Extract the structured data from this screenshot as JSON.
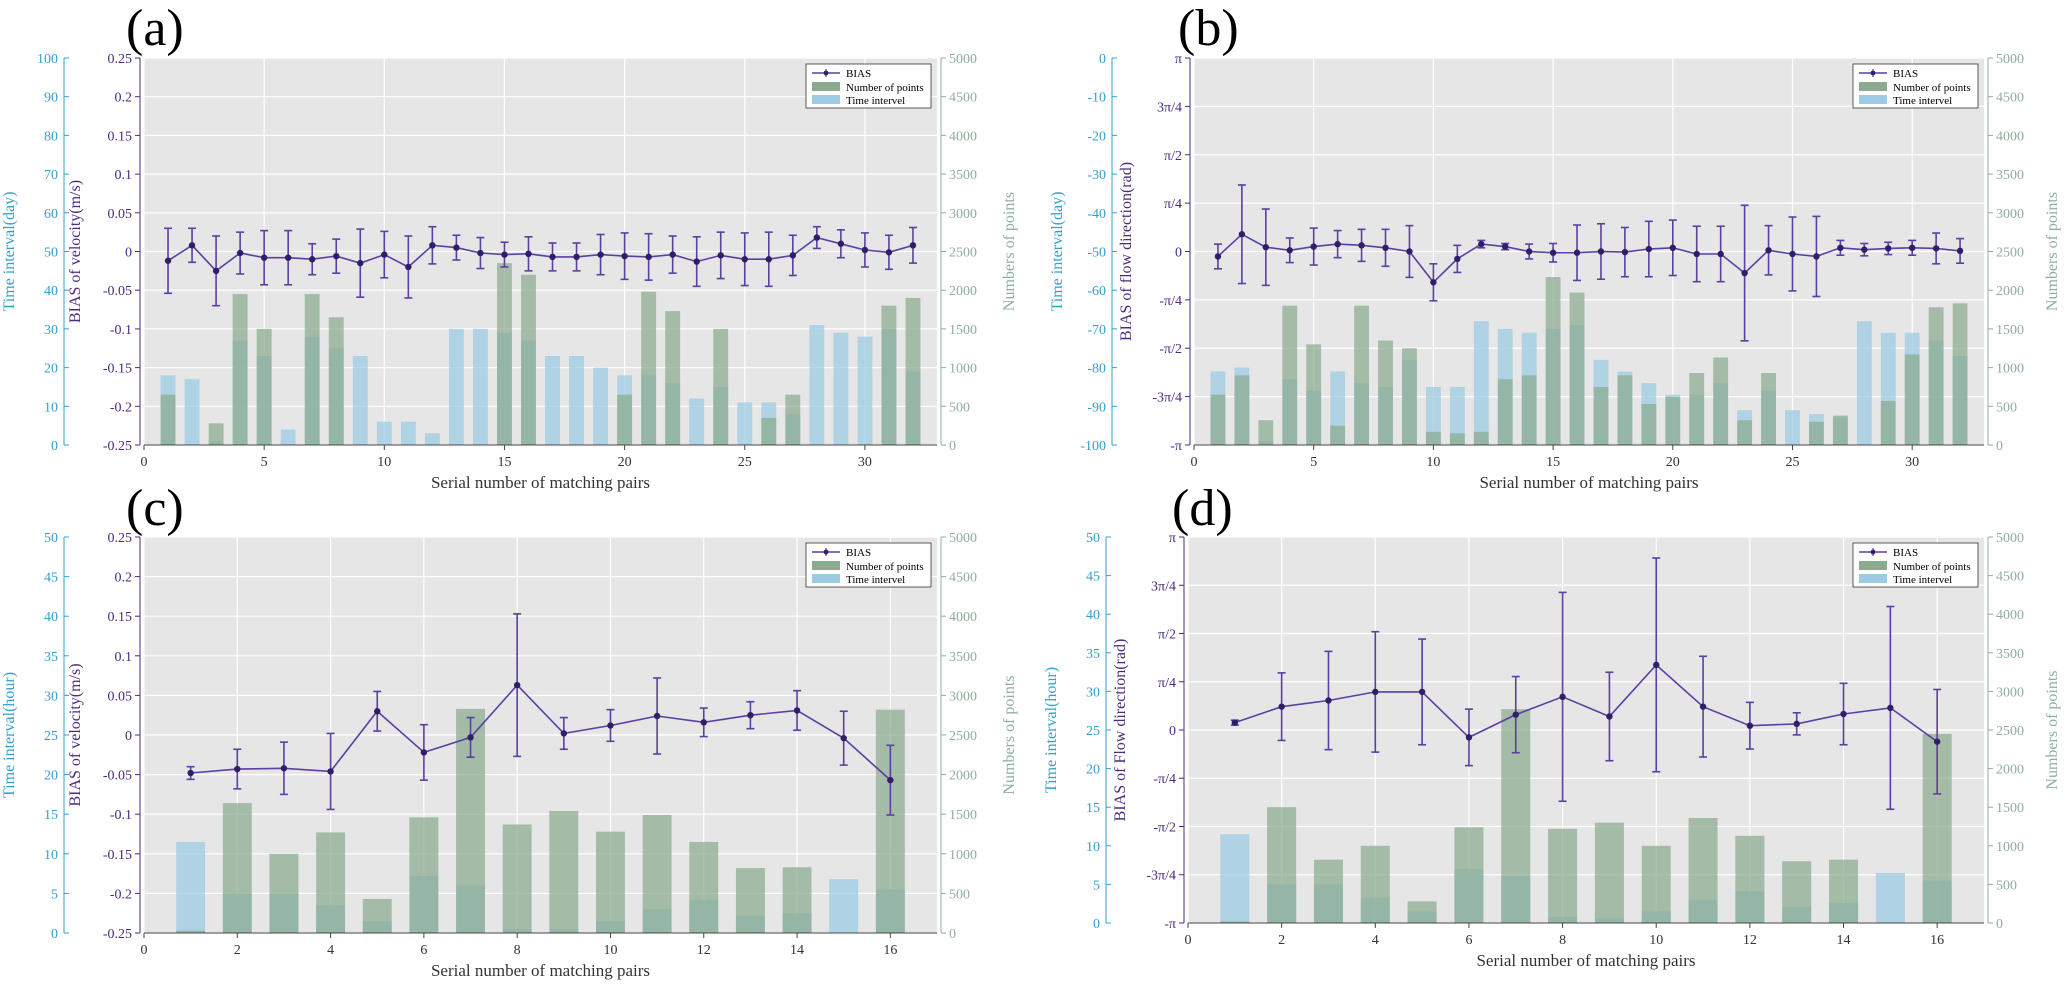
{
  "panels": [
    {
      "id": "a",
      "label": "(a)",
      "xlabel": "Serial number of matching pairs",
      "y_left_label": "BIAS of velocity(m/s)",
      "y_left2_label": "Time interval(day)",
      "y_right_label": "Numbers of points",
      "xlim": [
        0,
        33
      ],
      "x_ticks": [
        "0",
        "5",
        "10",
        "15",
        "20",
        "25",
        "30"
      ],
      "y_left_ticks": [
        "0.25",
        "0.2",
        "0.15",
        "0.1",
        "0.05",
        "0",
        "-0.05",
        "-0.1",
        "-0.15",
        "-0.2",
        "-0.25"
      ],
      "y_left2_ticks": [
        "100",
        "90",
        "80",
        "70",
        "60",
        "50",
        "40",
        "30",
        "20",
        "10",
        "0"
      ],
      "y_right_ticks": [
        "5000",
        "4500",
        "4000",
        "3500",
        "3000",
        "2500",
        "2000",
        "1500",
        "1000",
        "500",
        "0"
      ],
      "legend": [
        "BIAS",
        "Number of points",
        "Time intervel"
      ]
    },
    {
      "id": "b",
      "label": "(b)",
      "xlabel": "Serial number of matching pairs",
      "y_left_label": "BIAS of flow direction(rad)",
      "y_left2_label": "Time interval(day)",
      "y_right_label": "Numbers of points",
      "xlim": [
        0,
        33
      ],
      "x_ticks": [
        "0",
        "5",
        "10",
        "15",
        "20",
        "25",
        "30"
      ],
      "y_left_ticks": [
        "π",
        "3π/4",
        "π/2",
        "π/4",
        "0",
        "-π/4",
        "-π/2",
        "-3π/4",
        "-π"
      ],
      "y_left2_ticks": [
        "0",
        "-10",
        "-20",
        "-30",
        "-40",
        "-50",
        "-60",
        "-70",
        "-80",
        "-90",
        "-100"
      ],
      "y_right_ticks": [
        "5000",
        "4500",
        "4000",
        "3500",
        "3000",
        "2500",
        "2000",
        "1500",
        "1000",
        "500",
        "0"
      ],
      "legend": [
        "BIAS",
        "Number of points",
        "Time intervel"
      ]
    },
    {
      "id": "c",
      "label": "(c)",
      "xlabel": "Serial number of matching pairs",
      "y_left_label": "BIAS of velocity(m/s)",
      "y_left2_label": "Time interval(hour)",
      "y_right_label": "Numbers of points",
      "xlim": [
        0,
        17
      ],
      "x_ticks": [
        "0",
        "2",
        "4",
        "6",
        "8",
        "10",
        "12",
        "14",
        "16"
      ],
      "y_left_ticks": [
        "0.25",
        "0.2",
        "0.15",
        "0.1",
        "0.05",
        "0",
        "-0.05",
        "-0.1",
        "-0.15",
        "-0.2",
        "-0.25"
      ],
      "y_left2_ticks": [
        "50",
        "45",
        "40",
        "35",
        "30",
        "25",
        "20",
        "15",
        "10",
        "5",
        "0"
      ],
      "y_right_ticks": [
        "5000",
        "4500",
        "4000",
        "3500",
        "3000",
        "2500",
        "2000",
        "1500",
        "1000",
        "500",
        "0"
      ],
      "legend": [
        "BIAS",
        "Number of points",
        "Time intervel"
      ]
    },
    {
      "id": "d",
      "label": "(d)",
      "xlabel": "Serial number of matching pairs",
      "y_left_label": "BIAS of Flow direction(rad)",
      "y_left2_label": "Time interval(hour)",
      "y_right_label": "Numbers of points",
      "xlim": [
        0,
        17
      ],
      "x_ticks": [
        "0",
        "2",
        "4",
        "6",
        "8",
        "10",
        "12",
        "14",
        "16"
      ],
      "y_left_ticks": [
        "π",
        "3π/4",
        "π/2",
        "π/4",
        "0",
        "-π/4",
        "-π/2",
        "-3π/4",
        "-π"
      ],
      "y_left2_ticks": [
        "50",
        "45",
        "40",
        "35",
        "30",
        "25",
        "20",
        "15",
        "10",
        "5",
        "0"
      ],
      "y_right_ticks": [
        "5000",
        "4500",
        "4000",
        "3500",
        "3000",
        "2500",
        "2000",
        "1500",
        "1000",
        "500",
        "0"
      ],
      "legend": [
        "BIAS",
        "Number of points",
        "Time intervel"
      ]
    }
  ],
  "colors": {
    "bias": "#2e1f66",
    "bias_errorbar": "#5b3fa3",
    "points_bar": "#8aab8f",
    "time_bar": "#9ccbe3",
    "left2_axis": "#30a0cf",
    "left1_axis": "#4a2b7d",
    "right_axis": "#8fae9d",
    "plot_bg": "#e6e6e6"
  },
  "chart_data": [
    {
      "panel": "a",
      "type": "bar+line",
      "title": "",
      "xlabel": "Serial number of matching pairs",
      "ylabel": "BIAS of velocity(m/s)",
      "x": [
        1,
        2,
        3,
        4,
        5,
        6,
        7,
        8,
        9,
        10,
        11,
        12,
        13,
        14,
        15,
        16,
        17,
        18,
        19,
        20,
        21,
        22,
        23,
        24,
        25,
        26,
        27,
        28,
        29,
        30,
        31,
        32
      ],
      "series": [
        {
          "name": "BIAS",
          "axis": "left",
          "ylim": [
            -0.25,
            0.25
          ],
          "values": [
            -0.012,
            0.008,
            -0.025,
            -0.002,
            -0.008,
            -0.008,
            -0.01,
            -0.006,
            -0.015,
            -0.004,
            -0.02,
            0.008,
            0.005,
            -0.002,
            -0.004,
            -0.003,
            -0.007,
            -0.007,
            -0.004,
            -0.006,
            -0.007,
            -0.004,
            -0.013,
            -0.005,
            -0.01,
            -0.01,
            -0.005,
            0.018,
            0.01,
            0.002,
            -0.001,
            0.008
          ],
          "err": [
            0.042,
            0.022,
            0.045,
            0.027,
            0.035,
            0.035,
            0.02,
            0.022,
            0.044,
            0.03,
            0.04,
            0.024,
            0.016,
            0.02,
            0.016,
            0.022,
            0.018,
            0.018,
            0.026,
            0.03,
            0.03,
            0.024,
            0.032,
            0.03,
            0.034,
            0.035,
            0.026,
            0.014,
            0.018,
            0.022,
            0.022,
            0.023
          ]
        },
        {
          "name": "Number of points",
          "axis": "right",
          "ylim": [
            0,
            5000
          ],
          "values": [
            650,
            0,
            280,
            1950,
            1500,
            0,
            1950,
            1650,
            0,
            0,
            0,
            0,
            0,
            0,
            2350,
            2200,
            0,
            0,
            0,
            650,
            1980,
            1730,
            0,
            1500,
            0,
            350,
            650,
            0,
            0,
            0,
            1800,
            1900
          ]
        },
        {
          "name": "Time intervel",
          "axis": "left2",
          "ylim": [
            0,
            100
          ],
          "values": [
            18,
            17,
            1,
            27,
            23,
            4,
            28,
            25,
            23,
            6,
            6,
            3,
            30,
            30,
            29,
            27,
            23,
            23,
            20,
            18,
            18,
            16,
            12,
            15,
            11,
            11,
            8,
            31,
            29,
            28,
            30,
            19
          ]
        }
      ]
    },
    {
      "panel": "b",
      "type": "bar+line",
      "title": "",
      "xlabel": "Serial number of matching pairs",
      "ylabel": "BIAS of flow direction(rad)",
      "x": [
        1,
        2,
        3,
        4,
        5,
        6,
        7,
        8,
        9,
        10,
        11,
        12,
        13,
        14,
        15,
        16,
        17,
        18,
        19,
        20,
        21,
        22,
        23,
        24,
        25,
        26,
        27,
        28,
        29,
        30,
        31,
        32
      ],
      "series": [
        {
          "name": "BIAS",
          "axis": "left",
          "ylim": [
            -3.1416,
            3.1416
          ],
          "values": [
            -0.08,
            0.28,
            0.07,
            0.02,
            0.08,
            0.12,
            0.1,
            0.06,
            0.0,
            -0.5,
            -0.12,
            0.12,
            0.08,
            0.0,
            -0.02,
            -0.02,
            0.0,
            -0.01,
            0.04,
            0.06,
            -0.04,
            -0.04,
            -0.35,
            0.02,
            -0.04,
            -0.08,
            0.06,
            0.03,
            0.05,
            0.06,
            0.05,
            0.01
          ],
          "err": [
            0.2,
            0.8,
            0.62,
            0.2,
            0.3,
            0.22,
            0.26,
            0.3,
            0.42,
            0.3,
            0.22,
            0.06,
            0.05,
            0.12,
            0.15,
            0.45,
            0.45,
            0.4,
            0.45,
            0.45,
            0.45,
            0.45,
            1.1,
            0.4,
            0.6,
            0.65,
            0.12,
            0.1,
            0.1,
            0.12,
            0.25,
            0.2
          ]
        },
        {
          "name": "Number of points",
          "axis": "right",
          "ylim": [
            0,
            5000
          ],
          "values": [
            650,
            900,
            320,
            1800,
            1300,
            250,
            1800,
            1350,
            1250,
            170,
            150,
            170,
            850,
            900,
            2170,
            1970,
            750,
            900,
            530,
            620,
            930,
            1130,
            320,
            930,
            0,
            300,
            380,
            0,
            570,
            1170,
            1780,
            1830
          ]
        },
        {
          "name": "Time intervel",
          "axis": "left2",
          "ylim": [
            -100,
            0
          ],
          "values": [
            -81,
            -80,
            -99,
            -83,
            -86,
            -81,
            -84,
            -85,
            -78,
            -85,
            -85,
            -68,
            -70,
            -71,
            -70,
            -69,
            -78,
            -81,
            -84,
            -87,
            -87,
            -84,
            -91,
            -86,
            -91,
            -92,
            -93,
            -68,
            -71,
            -71,
            -73,
            -77
          ]
        }
      ]
    },
    {
      "panel": "c",
      "type": "bar+line",
      "title": "",
      "xlabel": "Serial number of matching pairs",
      "ylabel": "BIAS of velocity(m/s)",
      "x": [
        1,
        2,
        3,
        4,
        5,
        6,
        7,
        8,
        9,
        10,
        11,
        12,
        13,
        14,
        15,
        16
      ],
      "series": [
        {
          "name": "BIAS",
          "axis": "left",
          "ylim": [
            -0.25,
            0.25
          ],
          "values": [
            -0.048,
            -0.043,
            -0.042,
            -0.046,
            0.03,
            -0.022,
            -0.003,
            0.063,
            0.002,
            0.012,
            0.024,
            0.016,
            0.025,
            0.031,
            -0.004,
            -0.057
          ],
          "err": [
            0.008,
            0.025,
            0.033,
            0.048,
            0.025,
            0.035,
            0.025,
            0.09,
            0.02,
            0.02,
            0.048,
            0.018,
            0.017,
            0.025,
            0.034,
            0.044
          ]
        },
        {
          "name": "Number of points",
          "axis": "right",
          "ylim": [
            0,
            5000
          ],
          "values": [
            30,
            1640,
            1000,
            1270,
            430,
            1460,
            2830,
            1370,
            1540,
            1280,
            1490,
            1150,
            820,
            830,
            0,
            2820
          ]
        },
        {
          "name": "Time intervel",
          "axis": "left2",
          "ylim": [
            0,
            50
          ],
          "values": [
            11.5,
            5,
            5,
            3.5,
            1.5,
            7.2,
            6,
            0.5,
            0.5,
            1.5,
            3,
            4.2,
            2.2,
            2.5,
            6.8,
            5.5
          ]
        }
      ]
    },
    {
      "panel": "d",
      "type": "bar+line",
      "title": "",
      "xlabel": "Serial number of matching pairs",
      "ylabel": "BIAS of Flow direction(rad)",
      "x": [
        1,
        2,
        3,
        4,
        5,
        6,
        7,
        8,
        9,
        10,
        11,
        12,
        13,
        14,
        15,
        16
      ],
      "series": [
        {
          "name": "BIAS",
          "axis": "left",
          "ylim": [
            -3.1416,
            3.1416
          ],
          "values": [
            0.12,
            0.38,
            0.48,
            0.62,
            0.62,
            -0.12,
            0.25,
            0.54,
            0.22,
            1.06,
            0.38,
            0.07,
            0.1,
            0.26,
            0.36,
            -0.19
          ],
          "err": [
            0.04,
            0.55,
            0.8,
            0.98,
            0.86,
            0.46,
            0.62,
            1.7,
            0.72,
            1.74,
            0.82,
            0.38,
            0.18,
            0.5,
            1.65,
            0.85
          ]
        },
        {
          "name": "Number of points",
          "axis": "right",
          "ylim": [
            0,
            5000
          ],
          "values": [
            20,
            1500,
            820,
            1000,
            280,
            1240,
            2770,
            1220,
            1300,
            1000,
            1360,
            1130,
            800,
            820,
            0,
            2450
          ]
        },
        {
          "name": "Time intervel",
          "axis": "left2",
          "ylim": [
            0,
            50
          ],
          "values": [
            11.5,
            5,
            5,
            3.3,
            1.5,
            7,
            6,
            0.8,
            0.6,
            1.5,
            3,
            4.1,
            2.1,
            2.6,
            6.5,
            5.5
          ]
        }
      ]
    }
  ]
}
